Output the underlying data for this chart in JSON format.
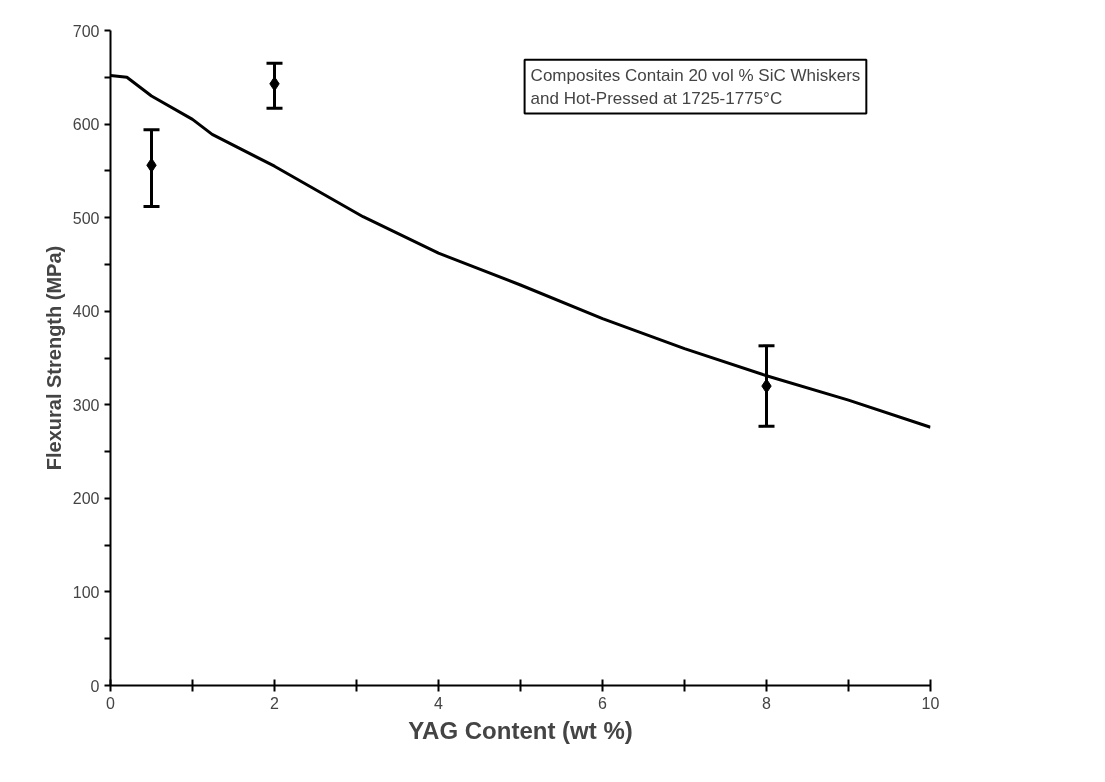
{
  "chart_data": {
    "type": "scatter",
    "xlabel": "YAG Content (wt %)",
    "ylabel": "Flexural Strength (MPa)",
    "annotations": [
      "Composites Contain 20 vol % SiC Whiskers\nand Hot-Pressed at 1725-1775°C"
    ],
    "xlim": [
      0,
      10
    ],
    "ylim": [
      0,
      700
    ],
    "xticks": [
      0,
      {
        "value": 1,
        "label": null
      },
      2,
      {
        "value": 3,
        "label": null
      },
      4,
      {
        "value": 5,
        "label": null
      },
      6,
      {
        "value": 7,
        "label": null
      },
      8,
      {
        "value": 9,
        "label": null
      },
      10
    ],
    "yticks": [
      0,
      {
        "value": 50,
        "label": null
      },
      100,
      {
        "value": 150,
        "label": null
      },
      200,
      {
        "value": 250,
        "label": null
      },
      300,
      {
        "value": 350,
        "label": null
      },
      400,
      {
        "value": 450,
        "label": null
      },
      500,
      {
        "value": 550,
        "label": null
      },
      600,
      {
        "value": 650,
        "label": null
      },
      700
    ],
    "grid": false,
    "series": [
      {
        "color": "#000000",
        "marker": "diamond",
        "x": [
          0.5,
          2,
          8
        ],
        "values": [
          556,
          643,
          320
        ],
        "errors": [
          [
            512,
            594
          ],
          [
            617,
            665
          ],
          [
            277,
            363
          ]
        ]
      },
      {
        "type": "line",
        "color": "#000000",
        "marker": "none",
        "line_style": "solid",
        "x": [
          0,
          0.2,
          0.5,
          1,
          1.24,
          2,
          3.08,
          4,
          5,
          6,
          7,
          8,
          9,
          10
        ],
        "values": [
          652,
          650,
          630,
          605,
          589,
          555,
          501,
          462,
          428,
          392,
          360,
          331,
          305,
          276
        ]
      }
    ]
  }
}
